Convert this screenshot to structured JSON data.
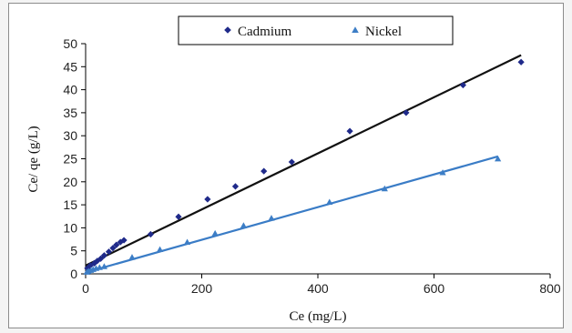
{
  "chart_data": {
    "type": "scatter",
    "title": "",
    "xlabel": "Ce (mg/L)",
    "ylabel": "Ce/ qe (g/L)",
    "xlim": [
      0,
      800
    ],
    "ylim": [
      0,
      50
    ],
    "xticks": [
      0,
      200,
      400,
      600,
      800
    ],
    "yticks": [
      0,
      5,
      10,
      15,
      20,
      25,
      30,
      35,
      40,
      45,
      50
    ],
    "grid": false,
    "legend_position": "top-center",
    "series": [
      {
        "name": "Cadmium",
        "marker": "diamond",
        "marker_color": "#1f2a8a",
        "trend_color": "#111111",
        "points": [
          [
            3,
            1.2
          ],
          [
            8,
            1.8
          ],
          [
            15,
            2.3
          ],
          [
            20,
            2.8
          ],
          [
            26,
            3.3
          ],
          [
            32,
            4.0
          ],
          [
            40,
            4.8
          ],
          [
            47,
            5.6
          ],
          [
            53,
            6.3
          ],
          [
            60,
            6.9
          ],
          [
            66,
            7.3
          ],
          [
            112,
            8.6
          ],
          [
            160,
            12.4
          ],
          [
            210,
            16.2
          ],
          [
            258,
            19.0
          ],
          [
            307,
            22.3
          ],
          [
            355,
            24.3
          ],
          [
            455,
            31.0
          ],
          [
            552,
            35.0
          ],
          [
            650,
            41.0
          ],
          [
            750,
            46.0
          ]
        ],
        "trendline": [
          [
            0,
            1.8
          ],
          [
            750,
            47.5
          ]
        ]
      },
      {
        "name": "Nickel",
        "marker": "triangle",
        "marker_color": "#3d7ec6",
        "trend_color": "#3a7cc6",
        "points": [
          [
            2,
            0.4
          ],
          [
            5,
            0.6
          ],
          [
            9,
            0.8
          ],
          [
            13,
            1.0
          ],
          [
            18,
            1.2
          ],
          [
            24,
            1.4
          ],
          [
            32,
            1.6
          ],
          [
            80,
            3.6
          ],
          [
            128,
            5.3
          ],
          [
            175,
            6.9
          ],
          [
            223,
            8.8
          ],
          [
            272,
            10.5
          ],
          [
            320,
            12.1
          ],
          [
            420,
            15.6
          ],
          [
            515,
            18.5
          ],
          [
            615,
            22.0
          ],
          [
            710,
            25.0
          ]
        ],
        "trendline": [
          [
            0,
            0.3
          ],
          [
            710,
            25.5
          ]
        ]
      }
    ]
  }
}
